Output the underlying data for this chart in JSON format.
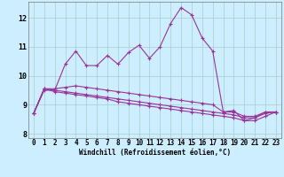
{
  "title": "",
  "xlabel": "Windchill (Refroidissement éolien,°C)",
  "ylabel": "",
  "background_color": "#cceeff",
  "grid_color": "#aacccc",
  "line_color": "#993399",
  "xlim": [
    -0.5,
    23.5
  ],
  "ylim": [
    7.85,
    12.55
  ],
  "yticks": [
    8,
    9,
    10,
    11,
    12
  ],
  "xticks": [
    0,
    1,
    2,
    3,
    4,
    5,
    6,
    7,
    8,
    9,
    10,
    11,
    12,
    13,
    14,
    15,
    16,
    17,
    18,
    19,
    20,
    21,
    22,
    23
  ],
  "line1": [
    8.7,
    9.5,
    9.5,
    10.4,
    10.85,
    10.35,
    10.35,
    10.7,
    10.4,
    10.8,
    11.05,
    10.6,
    11.0,
    11.8,
    12.35,
    12.1,
    11.3,
    10.85,
    8.75,
    8.8,
    8.45,
    8.55,
    8.75,
    8.75
  ],
  "line2": [
    8.7,
    9.55,
    9.55,
    9.6,
    9.65,
    9.6,
    9.55,
    9.5,
    9.45,
    9.4,
    9.35,
    9.3,
    9.25,
    9.2,
    9.15,
    9.1,
    9.05,
    9.0,
    8.75,
    8.75,
    8.6,
    8.6,
    8.75,
    8.75
  ],
  "line3": [
    8.7,
    9.55,
    9.5,
    9.45,
    9.4,
    9.35,
    9.3,
    9.25,
    9.2,
    9.15,
    9.1,
    9.05,
    9.0,
    8.95,
    8.9,
    8.85,
    8.8,
    8.75,
    8.7,
    8.65,
    8.55,
    8.55,
    8.7,
    8.75
  ],
  "line4": [
    8.7,
    9.55,
    9.45,
    9.4,
    9.35,
    9.3,
    9.25,
    9.2,
    9.1,
    9.05,
    9.0,
    8.95,
    8.9,
    8.85,
    8.8,
    8.75,
    8.7,
    8.65,
    8.6,
    8.55,
    8.45,
    8.45,
    8.6,
    8.75
  ],
  "tick_fontsize": 5.5,
  "xlabel_fontsize": 5.5
}
